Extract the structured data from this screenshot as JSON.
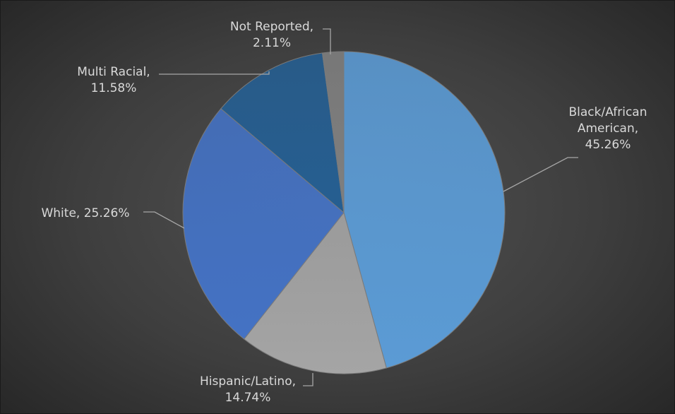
{
  "chart_data": {
    "type": "pie",
    "title": "",
    "slices": [
      {
        "name": "Black/African American",
        "value": 45.26,
        "label_lines": [
          "Black/African",
          "American,",
          "45.26%"
        ],
        "color": "#5b9bd5"
      },
      {
        "name": "Hispanic/Latino",
        "value": 14.74,
        "label_lines": [
          "Hispanic/Latino,",
          "14.74%"
        ],
        "color": "#a5a5a5"
      },
      {
        "name": "White",
        "value": 25.26,
        "label_lines": [
          "White, 25.26%"
        ],
        "color": "#4472c4"
      },
      {
        "name": "Multi Racial",
        "value": 11.58,
        "label_lines": [
          "Multi Racial,",
          "11.58%"
        ],
        "color": "#255e91"
      },
      {
        "name": "Not Reported",
        "value": 2.11,
        "label_lines": [
          "Not Reported,",
          "2.11%"
        ],
        "color": "#7f7f7f"
      }
    ],
    "legend": "none",
    "start_angle": "12 o'clock",
    "direction": "clockwise"
  }
}
